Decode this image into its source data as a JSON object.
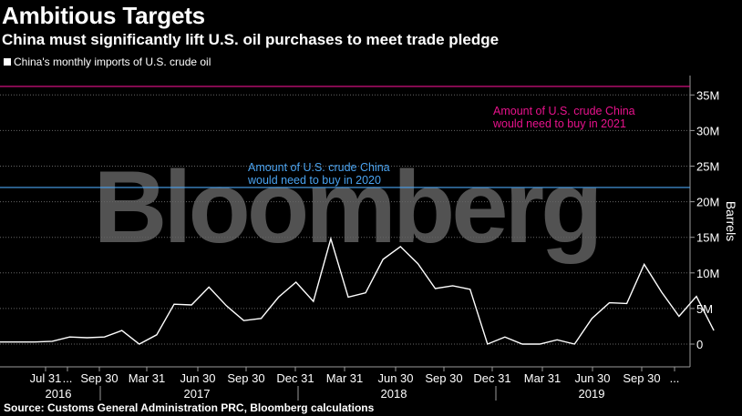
{
  "header": {
    "title": "Ambitious Targets",
    "subtitle": "China must significantly lift U.S. oil purchases to meet trade pledge"
  },
  "legend": {
    "label": "China's monthly imports of U.S. crude oil",
    "color": "#ffffff"
  },
  "watermark": "Bloomberg",
  "source": "Source: Customs General Administration PRC, Bloomberg calculations",
  "colors": {
    "background": "#000000",
    "line": "#ffffff",
    "target_2021": "#e8128c",
    "target_2020": "#4aa3f0",
    "grid": "#666666"
  },
  "chart_data": {
    "type": "line",
    "title": "Ambitious Targets",
    "subtitle": "China must significantly lift U.S. oil purchases to meet trade pledge",
    "ylabel": "Barrels",
    "y_axis_position": "right",
    "ylim": [
      -3000000,
      38000000
    ],
    "yticks": [
      0,
      5000000,
      10000000,
      15000000,
      20000000,
      25000000,
      30000000,
      35000000
    ],
    "ytick_labels": [
      "0",
      "5M",
      "10M",
      "15M",
      "20M",
      "25M",
      "30M",
      "35M"
    ],
    "grid": "horizontal dotted",
    "x_tick_labels": [
      "Jul 31",
      "...",
      "Sep 30",
      "Mar 31",
      "Jun 30",
      "Sep 30",
      "Dec 31",
      "Mar 31",
      "Jun 30",
      "Sep 30",
      "Dec 31",
      "Mar 31",
      "Jun 30",
      "Sep 30",
      "..."
    ],
    "year_labels": [
      "2016",
      "2017",
      "2018",
      "2019"
    ],
    "series": [
      {
        "name": "China's monthly imports of U.S. crude oil",
        "color": "#ffffff",
        "x": [
          "2016-06",
          "2016-07",
          "2016-08",
          "2016-09",
          "2016-10",
          "2016-11",
          "2016-12",
          "2017-01",
          "2017-02",
          "2017-03",
          "2017-04",
          "2017-05",
          "2017-06",
          "2017-07",
          "2017-08",
          "2017-09",
          "2017-10",
          "2017-11",
          "2017-12",
          "2018-01",
          "2018-02",
          "2018-03",
          "2018-04",
          "2018-05",
          "2018-06",
          "2018-07",
          "2018-08",
          "2018-09",
          "2018-10",
          "2018-11",
          "2018-12",
          "2019-01",
          "2019-02",
          "2019-03",
          "2019-04",
          "2019-05",
          "2019-06",
          "2019-07",
          "2019-08",
          "2019-09",
          "2019-10",
          "2019-11"
        ],
        "values": [
          0.3,
          0.3,
          0.3,
          0.4,
          1.0,
          0.9,
          1.0,
          1.9,
          0.0,
          1.3,
          5.6,
          5.5,
          8.0,
          5.4,
          3.3,
          3.6,
          6.6,
          8.7,
          6.0,
          14.8,
          6.6,
          7.2,
          11.9,
          13.7,
          11.3,
          7.8,
          8.2,
          7.7,
          0.0,
          1.0,
          0.0,
          0.0,
          0.6,
          0.0,
          3.6,
          5.8,
          5.7,
          11.2,
          7.3,
          3.9,
          6.7,
          1.9
        ],
        "value_units": "millions of barrels"
      }
    ],
    "reference_lines": [
      {
        "value": 36200000,
        "color": "#e8128c",
        "label": "Amount of U.S. crude China would need to buy in 2021",
        "label_lines": [
          "Amount of U.S. crude China",
          "would need to buy in 2021"
        ]
      },
      {
        "value": 22000000,
        "color": "#4aa3f0",
        "label": "Amount of U.S. crude China would need to buy in 2020",
        "label_lines": [
          "Amount of U.S. crude China",
          "would need to buy in 2020"
        ]
      }
    ]
  }
}
